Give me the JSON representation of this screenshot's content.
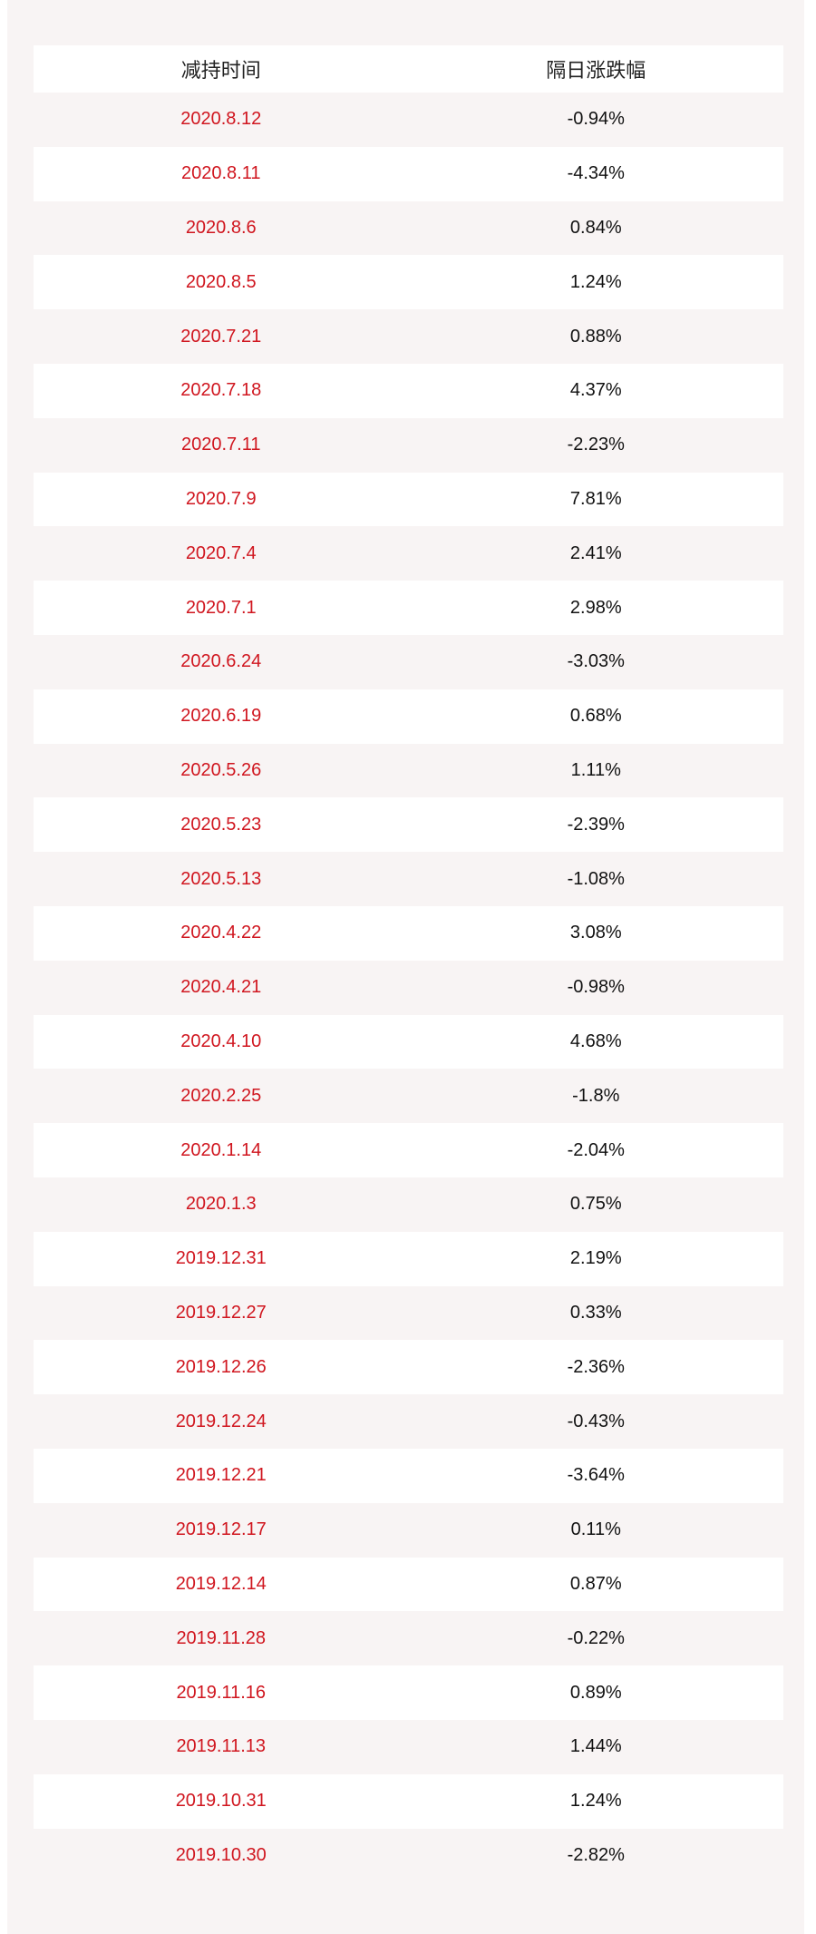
{
  "table": {
    "header": [
      "减持时间",
      "隔日涨跌幅"
    ],
    "rows": [
      [
        "2020.8.12",
        "-0.94%"
      ],
      [
        "2020.8.11",
        "-4.34%"
      ],
      [
        "2020.8.6",
        "0.84%"
      ],
      [
        "2020.8.5",
        "1.24%"
      ],
      [
        "2020.7.21",
        "0.88%"
      ],
      [
        "2020.7.18",
        "4.37%"
      ],
      [
        "2020.7.11",
        "-2.23%"
      ],
      [
        "2020.7.9",
        "7.81%"
      ],
      [
        "2020.7.4",
        "2.41%"
      ],
      [
        "2020.7.1",
        "2.98%"
      ],
      [
        "2020.6.24",
        "-3.03%"
      ],
      [
        "2020.6.19",
        "0.68%"
      ],
      [
        "2020.5.26",
        "1.11%"
      ],
      [
        "2020.5.23",
        "-2.39%"
      ],
      [
        "2020.5.13",
        "-1.08%"
      ],
      [
        "2020.4.22",
        "3.08%"
      ],
      [
        "2020.4.21",
        "-0.98%"
      ],
      [
        "2020.4.10",
        "4.68%"
      ],
      [
        "2020.2.25",
        "-1.8%"
      ],
      [
        "2020.1.14",
        "-2.04%"
      ],
      [
        "2020.1.3",
        "0.75%"
      ],
      [
        "2019.12.31",
        "2.19%"
      ],
      [
        "2019.12.27",
        "0.33%"
      ],
      [
        "2019.12.26",
        "-2.36%"
      ],
      [
        "2019.12.24",
        "-0.43%"
      ],
      [
        "2019.12.21",
        "-3.64%"
      ],
      [
        "2019.12.17",
        "0.11%"
      ],
      [
        "2019.12.14",
        "0.87%"
      ],
      [
        "2019.11.28",
        "-0.22%"
      ],
      [
        "2019.11.16",
        "0.89%"
      ],
      [
        "2019.11.13",
        "1.44%"
      ],
      [
        "2019.10.31",
        "1.24%"
      ],
      [
        "2019.10.30",
        "-2.82%"
      ]
    ]
  }
}
